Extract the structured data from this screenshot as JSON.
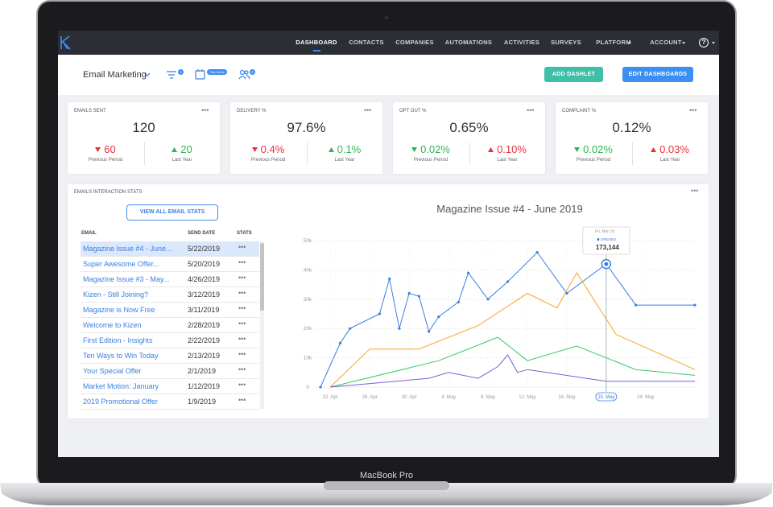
{
  "brand": "MacBook Pro",
  "nav": {
    "items": [
      {
        "label": "DASHBOARD",
        "active": true
      },
      {
        "label": "CONTACTS"
      },
      {
        "label": "COMPANIES"
      },
      {
        "label": "AUTOMATIONS"
      },
      {
        "label": "ACTIVITIES"
      },
      {
        "label": "SURVEYS"
      },
      {
        "label": "PLATFORM",
        "dropdown": true
      },
      {
        "label": "ACCOUNT",
        "dropdown": true
      }
    ],
    "help": "?"
  },
  "toolbar": {
    "title": "Email Marketing",
    "filter_badge": "1",
    "date_badge": "This Week",
    "users_badge": "3",
    "buttons": [
      "ADD DASHLET",
      "EDIT DASHBOARDS"
    ]
  },
  "more": "•••",
  "kpis": [
    {
      "title": "EMAILS SENT",
      "value": "120",
      "compare": [
        {
          "value": "60",
          "label": "Previous Period",
          "direction": "down",
          "color": "#e8323c"
        },
        {
          "value": "20",
          "label": "Last Year",
          "direction": "up",
          "color": "#2fb457"
        }
      ]
    },
    {
      "title": "DELIVERY %",
      "value": "97.6%",
      "compare": [
        {
          "value": "0.4%",
          "label": "Previous Period",
          "direction": "down",
          "color": "#e8323c"
        },
        {
          "value": "0.1%",
          "label": "Last Year",
          "direction": "up",
          "color": "#2fb457"
        }
      ]
    },
    {
      "title": "OPT OUT %",
      "value": "0.65%",
      "compare": [
        {
          "value": "0.02%",
          "label": "Previous Period",
          "direction": "down",
          "color": "#2fb457"
        },
        {
          "value": "0.10%",
          "label": "Last Year",
          "direction": "up",
          "color": "#e8323c"
        }
      ]
    },
    {
      "title": "COMPLAINT %",
      "value": "0.12%",
      "compare": [
        {
          "value": "0.02%",
          "label": "Previous Period",
          "direction": "down",
          "color": "#2fb457"
        },
        {
          "value": "0.03%",
          "label": "Last Year",
          "direction": "up",
          "color": "#e8323c"
        }
      ]
    }
  ],
  "stats": {
    "title": "EMAILS INTERACTION STATS",
    "button": "VIEW ALL EMAIL STATS",
    "columns": [
      "EMAIL",
      "SEND DATE",
      "STATS"
    ],
    "selected": 0,
    "rows": [
      [
        "Magazine Issue #4 - June...",
        "5/22/2019"
      ],
      [
        "Super Awesome Offer...",
        "5/20/2019"
      ],
      [
        "Magazine Issue #3 - May...",
        "4/26/2019"
      ],
      [
        "Kizen - Still Joining?",
        "3/12/2019"
      ],
      [
        "Magazine is Now Free",
        "3/11/2019"
      ],
      [
        "Welcome to Kizen",
        "2/28/2019"
      ],
      [
        "First Edition - Insights",
        "2/22/2019"
      ],
      [
        "Ten Ways to Win Today",
        "2/13/2019"
      ],
      [
        "Your Special Offer",
        "2/1/2019"
      ],
      [
        "Market Motion: January",
        "1/12/2019"
      ],
      [
        "2019 Promotional Offer",
        "1/9/2019"
      ]
    ]
  },
  "tooltip": {
    "date": "Fri, Mar 19",
    "label": "OPENED",
    "value": "173,144",
    "series": 0
  },
  "chart_data": {
    "type": "line",
    "title": "Magazine Issue #4 - June 2019",
    "xlim": [
      "21. Apr",
      "29. May"
    ],
    "xticks": [
      "22. Apr",
      "26. Apr",
      "30. Apr",
      "4. May",
      "8. May",
      "12. May",
      "16. May",
      "20. May",
      "24. May"
    ],
    "crosshair_tick": 7,
    "ylim": [
      0,
      50000
    ],
    "yticks": [
      0,
      {
        "value": 10000,
        "label": "10k"
      },
      {
        "value": 20000,
        "label": "20k"
      },
      {
        "value": 30000,
        "label": "30k"
      },
      {
        "value": 40000,
        "label": "40k"
      },
      {
        "value": 50000,
        "label": "50k"
      }
    ],
    "grid": true,
    "series": [
      {
        "color": "#3b7fe0",
        "markers": true,
        "x": [
          "21. Apr",
          "23. Apr",
          "24. Apr",
          "27. Apr",
          "28. Apr",
          "29. Apr",
          "30. Apr",
          "1. May",
          "2. May",
          "3. May",
          "5. May",
          "6. May",
          "8. May",
          "10. May",
          "13. May",
          "16. May",
          "20. May",
          "23. May",
          "29. May"
        ],
        "values": [
          0,
          15000,
          20000,
          25000,
          37000,
          20000,
          32000,
          31000,
          19000,
          24000,
          29000,
          39000,
          30000,
          36000,
          46000,
          32000,
          42000,
          28000,
          28000
        ]
      },
      {
        "color": "#f5a623",
        "markers": false,
        "x": [
          "22. Apr",
          "26. Apr",
          "1. May",
          "7. May",
          "12. May",
          "15. May",
          "17. May",
          "21. May",
          "29. May"
        ],
        "values": [
          0,
          13000,
          13000,
          21000,
          32000,
          27000,
          39000,
          18000,
          6000
        ]
      },
      {
        "color": "#3cc46a",
        "markers": false,
        "x": [
          "22. Apr",
          "3. May",
          "9. May",
          "12. May",
          "17. May",
          "23. May",
          "29. May"
        ],
        "values": [
          0,
          9000,
          17000,
          9000,
          14000,
          6000,
          4000
        ]
      },
      {
        "color": "#7b5fd6",
        "markers": false,
        "x": [
          "22. Apr",
          "2. May",
          "4. May",
          "7. May",
          "9. May",
          "10. May",
          "11. May",
          "12. May",
          "20. May",
          "29. May"
        ],
        "values": [
          0,
          3000,
          5000,
          3000,
          7000,
          11000,
          5000,
          6000,
          2000,
          2000
        ]
      }
    ]
  }
}
